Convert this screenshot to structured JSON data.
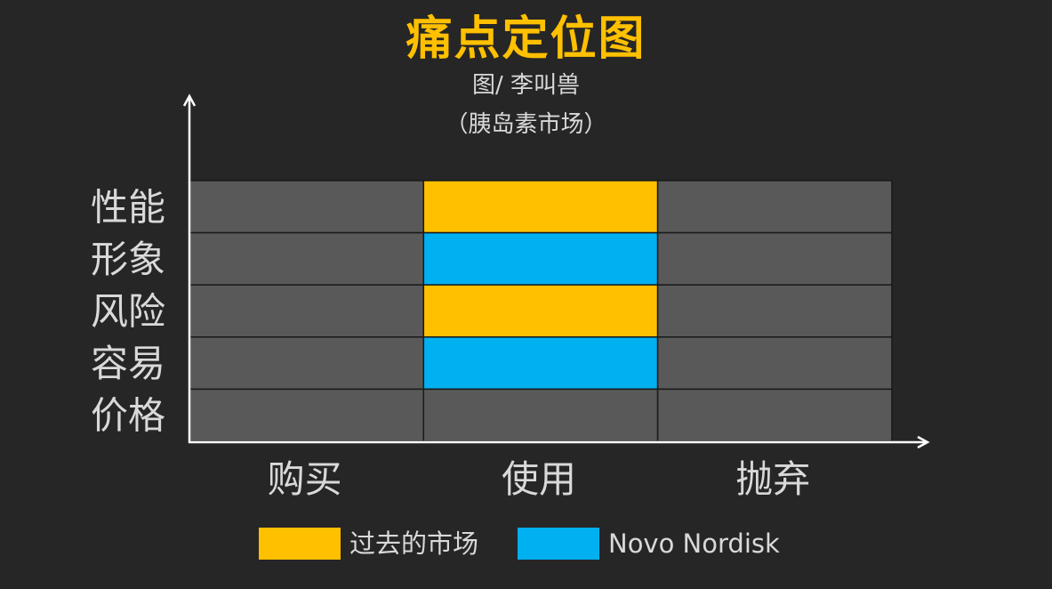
{
  "chart_data": {
    "type": "heatmap",
    "title": "痛点定位图",
    "subtitle": [
      "图/ 李叫兽",
      "（胰岛素市场）"
    ],
    "x_categories": [
      "购买",
      "使用",
      "抛弃"
    ],
    "y_categories": [
      "性能",
      "形象",
      "风险",
      "容易",
      "价格"
    ],
    "cells": [
      [
        "none",
        "past_market",
        "none"
      ],
      [
        "none",
        "novo_nordisk",
        "none"
      ],
      [
        "none",
        "past_market",
        "none"
      ],
      [
        "none",
        "novo_nordisk",
        "none"
      ],
      [
        "none",
        "none",
        "none"
      ]
    ],
    "legend": [
      {
        "key": "past_market",
        "label": "过去的市场",
        "color": "#FFC000"
      },
      {
        "key": "novo_nordisk",
        "label": "Novo Nordisk",
        "color": "#00B0F0"
      }
    ],
    "colors": {
      "none": "#595959",
      "background": "#262626",
      "axis": "#FFFFFF",
      "text": "#D9D9D9"
    },
    "legend_placement": "bottom",
    "grid": true
  }
}
